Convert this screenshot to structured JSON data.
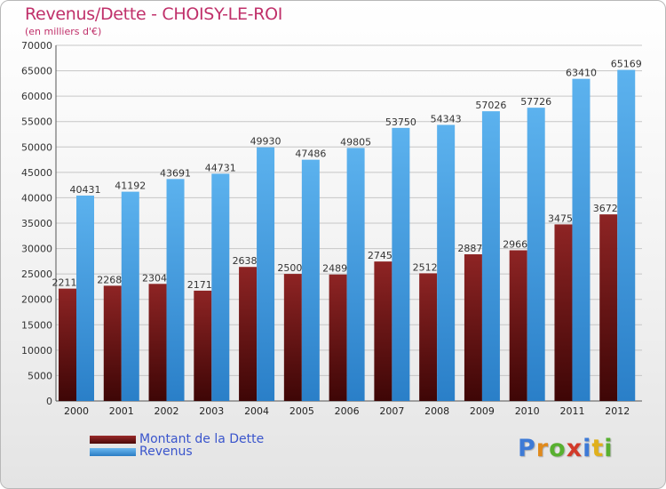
{
  "chart_data": {
    "type": "bar",
    "title": "Revenus/Dette - CHOISY-LE-ROI",
    "subtitle": "(en milliers d'€)",
    "categories": [
      "2000",
      "2001",
      "2002",
      "2003",
      "2004",
      "2005",
      "2006",
      "2007",
      "2008",
      "2009",
      "2010",
      "2011",
      "2012"
    ],
    "series": [
      {
        "name": "Montant de la Dette",
        "color": "#7a1a1a",
        "values": [
          22115,
          22685,
          23047,
          21714,
          26383,
          25009,
          24898,
          27453,
          25128,
          28871,
          29662,
          34755,
          36726
        ],
        "labels": [
          "22115",
          "22685",
          "23047",
          "21714",
          "26383",
          "25009",
          "24898",
          "27453",
          "25128",
          "28871",
          "29662",
          "34755",
          "36726"
        ]
      },
      {
        "name": "Revenus",
        "color": "#4aa3e6",
        "values": [
          40431,
          41192,
          43691,
          44731,
          49930,
          47486,
          49805,
          53750,
          54343,
          57026,
          57726,
          63410,
          65169
        ],
        "labels": [
          "40431",
          "41192",
          "43691",
          "44731",
          "49930",
          "47486",
          "49805",
          "53750",
          "54343",
          "57026",
          "57726",
          "63410",
          "65169"
        ]
      }
    ],
    "ylim": [
      0,
      70000
    ],
    "yticks": [
      0,
      5000,
      10000,
      15000,
      20000,
      25000,
      30000,
      35000,
      40000,
      45000,
      50000,
      55000,
      60000,
      65000,
      70000
    ],
    "grid": true,
    "legend_position": "bottom-left"
  },
  "logo": {
    "letters": [
      "P",
      "r",
      "o",
      "x",
      "i",
      "t",
      "i"
    ],
    "colors": [
      "#3d7ad6",
      "#e08a1c",
      "#58b030",
      "#d23a2a",
      "#3d7ad6",
      "#e0b01c",
      "#58b030"
    ]
  }
}
